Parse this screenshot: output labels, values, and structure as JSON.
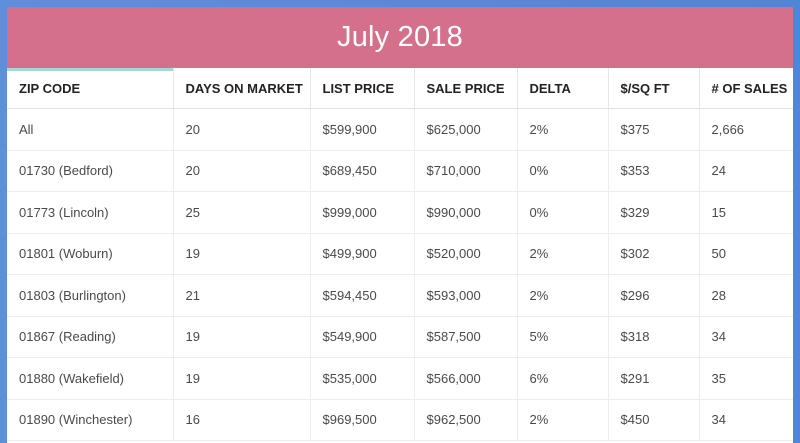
{
  "header": {
    "title": "July 2018"
  },
  "table": {
    "columns": [
      "ZIP CODE",
      "DAYS ON MARKET",
      "LIST PRICE",
      "SALE PRICE",
      "DELTA",
      "$/SQ FT",
      "# OF SALES"
    ],
    "rows": [
      [
        "All",
        "20",
        "$599,900",
        "$625,000",
        "2%",
        "$375",
        "2,666"
      ],
      [
        "01730 (Bedford)",
        "20",
        "$689,450",
        "$710,000",
        "0%",
        "$353",
        "24"
      ],
      [
        "01773 (Lincoln)",
        "25",
        "$999,000",
        "$990,000",
        "0%",
        "$329",
        "15"
      ],
      [
        "01801 (Woburn)",
        "19",
        "$499,900",
        "$520,000",
        "2%",
        "$302",
        "50"
      ],
      [
        "01803 (Burlington)",
        "21",
        "$594,450",
        "$593,000",
        "2%",
        "$296",
        "28"
      ],
      [
        "01867 (Reading)",
        "19",
        "$549,900",
        "$587,500",
        "5%",
        "$318",
        "34"
      ],
      [
        "01880 (Wakefield)",
        "19",
        "$535,000",
        "$566,000",
        "6%",
        "$291",
        "35"
      ],
      [
        "01890 (Winchester)",
        "16",
        "$969,500",
        "$962,500",
        "2%",
        "$450",
        "34"
      ]
    ]
  },
  "colors": {
    "header_bg": "#d4708b",
    "active_column_accent": "#9edbd6",
    "page_bg": "#5e8fdc"
  }
}
